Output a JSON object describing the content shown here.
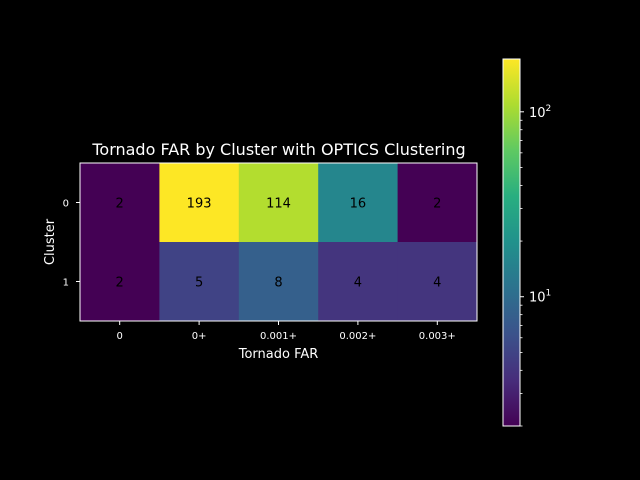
{
  "chart_data": {
    "type": "heatmap",
    "title": "Tornado FAR by Cluster with OPTICS Clustering",
    "xlabel": "Tornado FAR",
    "ylabel": "Cluster",
    "x_categories": [
      "0",
      "0+",
      "0.001+",
      "0.002+",
      "0.003+"
    ],
    "y_categories": [
      "0",
      "1"
    ],
    "values": [
      [
        2,
        193,
        114,
        16,
        2
      ],
      [
        2,
        5,
        8,
        4,
        4
      ]
    ],
    "colorbar": {
      "scale": "log",
      "colormap": "viridis",
      "range": [
        2,
        193
      ],
      "ticks": [
        {
          "value": 10,
          "base": "10",
          "exp": "1"
        },
        {
          "value": 100,
          "base": "10",
          "exp": "2"
        }
      ]
    },
    "colors": {
      "background": "#000000",
      "foreground": "#ffffff",
      "cell_text": "#000000"
    }
  }
}
